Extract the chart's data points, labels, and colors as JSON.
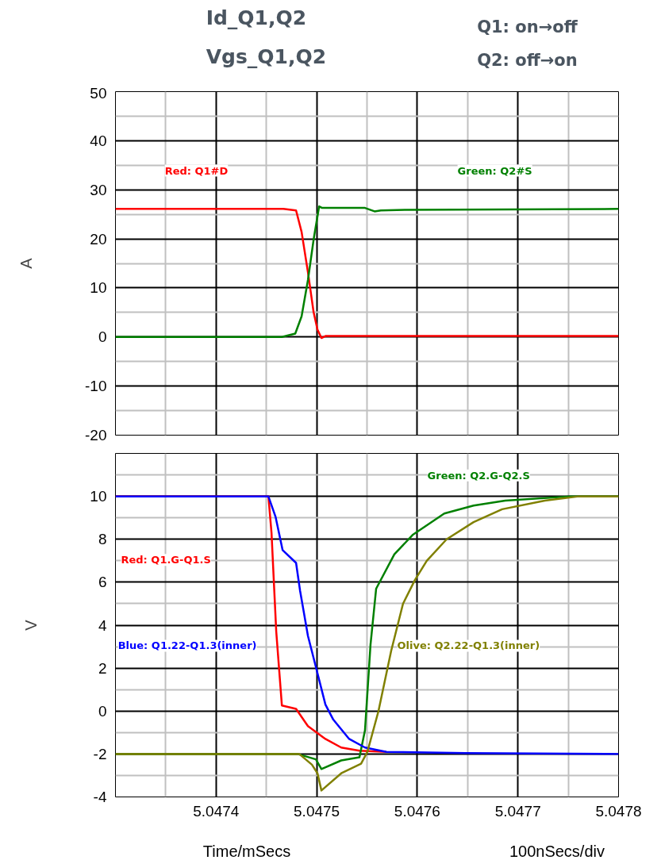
{
  "chart_data": [
    {
      "type": "line",
      "title": "Id_Q1,Q2",
      "subtitle": "Vgs_Q1,Q2",
      "annotations": [
        "Q1: on→off",
        "Q2: off→on"
      ],
      "ylabel": "A",
      "xlim": [
        5.0473,
        5.0478
      ],
      "xticks": [
        5.0474,
        5.0475,
        5.0476,
        5.0477,
        5.0478
      ],
      "ylim": [
        -20,
        50
      ],
      "yticks": [
        -20,
        -10,
        0,
        10,
        20,
        30,
        40,
        50
      ],
      "tick_labels": "y",
      "grid": true,
      "series": [
        {
          "name": "Red: Q1#D",
          "color": "#ff0000",
          "x": [
            5.0473,
            5.0474669,
            5.0474795,
            5.047485,
            5.0474913,
            5.0474969,
            5.0475008,
            5.0475047,
            5.0475087,
            5.0478
          ],
          "values": [
            26.1,
            26.1,
            25.8,
            21.4,
            13.2,
            5.1,
            1.5,
            -0.2,
            0.2,
            0.2
          ]
        },
        {
          "name": "Green: Q2#S",
          "color": "#008000",
          "x": [
            5.0473,
            5.0474654,
            5.0474787,
            5.047485,
            5.0474913,
            5.0474969,
            5.0475024,
            5.0475055,
            5.047548,
            5.0475575,
            5.0475638,
            5.0475874,
            5.0478
          ],
          "values": [
            0,
            0,
            0.7,
            4.2,
            11.6,
            19.8,
            26.6,
            26.3,
            26.3,
            25.6,
            25.8,
            25.9,
            26.1
          ]
        }
      ]
    },
    {
      "type": "line",
      "xlabel": "Time/mSecs",
      "ylabel": "V",
      "annotations": [
        "100nSecs/div"
      ],
      "xlim": [
        5.0473,
        5.0478
      ],
      "xticks": [
        5.0474,
        5.0475,
        5.0476,
        5.0477,
        5.0478
      ],
      "ylim": [
        -4,
        12
      ],
      "yticks": [
        -4,
        -2,
        0,
        2,
        4,
        6,
        8,
        10
      ],
      "grid": true,
      "series": [
        {
          "name": "Red: Q1.G-Q1.S",
          "color": "#ff0000",
          "x": [
            5.0473,
            5.047452,
            5.0474551,
            5.0474598,
            5.0474654,
            5.0474795,
            5.0474913,
            5.0475087,
            5.0475244,
            5.0475425,
            5.0475693
          ],
          "values": [
            10,
            10,
            8.3,
            3.7,
            0.26,
            0.1,
            -0.7,
            -1.3,
            -1.7,
            -1.85,
            -1.9
          ]
        },
        {
          "name": "Green: Q2.G-Q2.S",
          "color": "#008000",
          "x": [
            5.0473,
            5.0474811,
            5.0474992,
            5.0475047,
            5.0475244,
            5.0475425,
            5.047548,
            5.0475535,
            5.0475591,
            5.0475772,
            5.0475953,
            5.0476268,
            5.0476559,
            5.0476874,
            5.0477528,
            5.0478
          ],
          "values": [
            -2,
            -2,
            -2.25,
            -2.7,
            -2.3,
            -2.15,
            -0.9,
            3.1,
            5.7,
            7.3,
            8.2,
            9.2,
            9.57,
            9.8,
            10,
            10
          ]
        },
        {
          "name": "Blue: Q1.22-Q1.3(inner)",
          "color": "#0000ff",
          "x": [
            5.0473,
            5.047452,
            5.0474591,
            5.0474661,
            5.0474795,
            5.0474835,
            5.0474913,
            5.0474984,
            5.0475087,
            5.0475165,
            5.0475323,
            5.047548,
            5.0475693,
            5.047648,
            5.0478
          ],
          "values": [
            10,
            10,
            9.05,
            7.5,
            6.9,
            5.6,
            3.5,
            2.2,
            0.3,
            -0.4,
            -1.3,
            -1.7,
            -1.9,
            -1.96,
            -2
          ]
        },
        {
          "name": "Olive: Q2.22-Q1.3(inner)",
          "color": "#808000",
          "x": [
            5.0473,
            5.0474827,
            5.0474953,
            5.0475008,
            5.0475047,
            5.0475244,
            5.0475441,
            5.0475504,
            5.0475614,
            5.047574,
            5.0475858,
            5.0475976,
            5.0476094,
            5.0476291,
            5.0476559,
            5.0476843,
            5.0477268,
            5.0477606,
            5.0478
          ],
          "values": [
            -2,
            -2,
            -2.5,
            -2.9,
            -3.7,
            -2.9,
            -2.45,
            -1.9,
            0,
            2.8,
            5,
            6.1,
            7,
            8,
            8.8,
            9.4,
            9.8,
            10,
            10
          ]
        }
      ]
    }
  ]
}
